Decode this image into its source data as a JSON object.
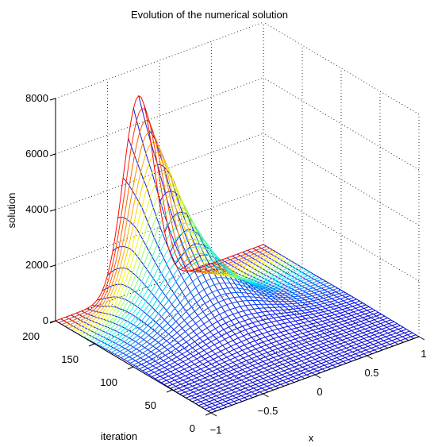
{
  "chart_data": {
    "type": "surface-waterfall",
    "title": "Evolution of the numerical solution",
    "xlabel": "x",
    "ylabel": "iteration",
    "zlabel": "solution",
    "x_ticks": [
      "−1",
      "−0.5",
      "0",
      "0.5",
      "1"
    ],
    "y_ticks": [
      "0",
      "50",
      "100",
      "150",
      "200"
    ],
    "z_ticks": [
      "0",
      "2000",
      "4000",
      "6000",
      "8000"
    ],
    "xlim": [
      -1,
      1
    ],
    "ylim": [
      0,
      200
    ],
    "zlim": [
      0,
      8000
    ],
    "colormap": "jet",
    "grid": true,
    "series": [
      {
        "iteration": 0,
        "peak": 0
      },
      {
        "iteration": 25,
        "peak": 40
      },
      {
        "iteration": 50,
        "peak": 160
      },
      {
        "iteration": 75,
        "peak": 480
      },
      {
        "iteration": 100,
        "peak": 1000
      },
      {
        "iteration": 125,
        "peak": 1800
      },
      {
        "iteration": 150,
        "peak": 3000
      },
      {
        "iteration": 175,
        "peak": 4900
      },
      {
        "iteration": 200,
        "peak": 7000
      }
    ]
  }
}
